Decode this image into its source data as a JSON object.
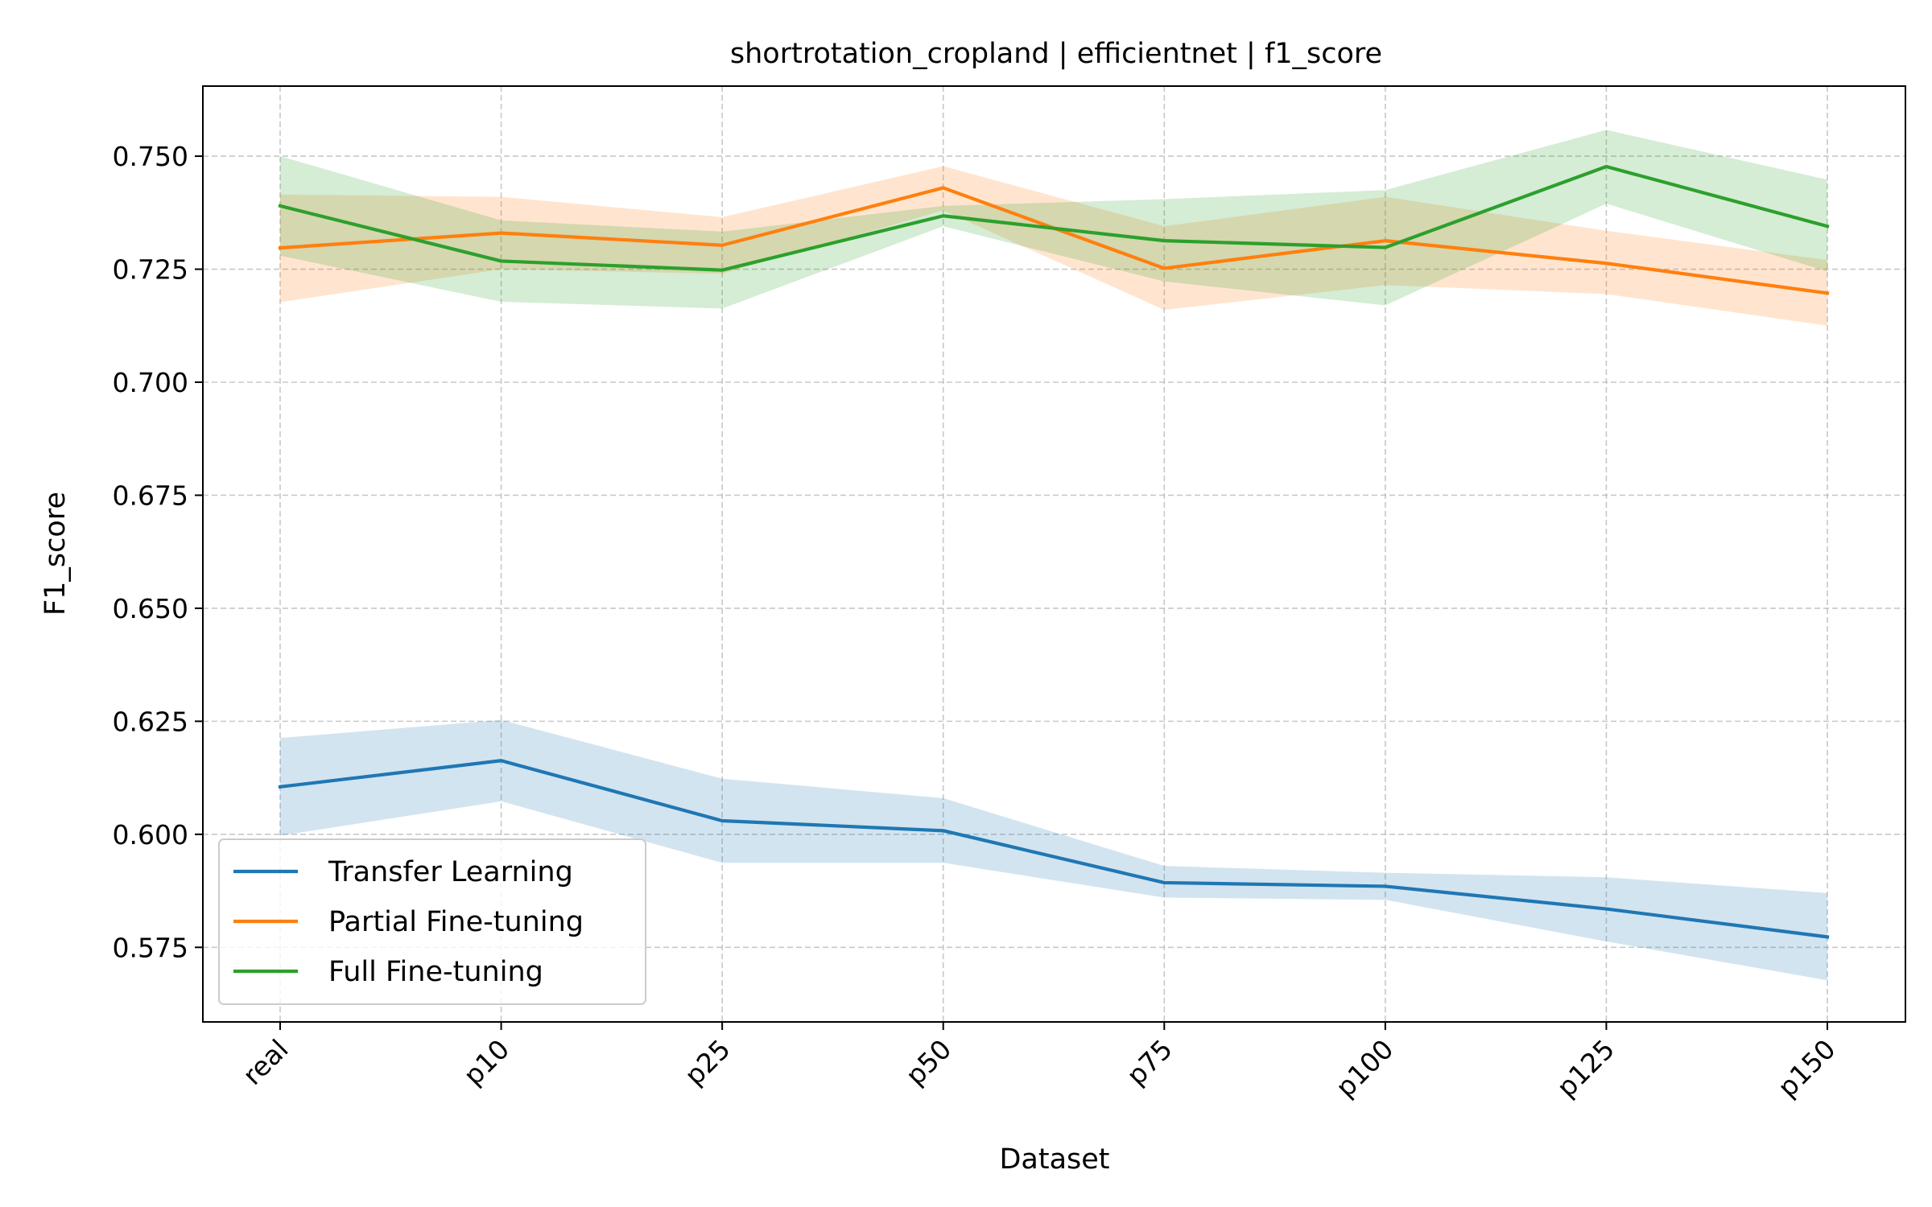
{
  "chart_data": {
    "type": "line",
    "title": "shortrotation_cropland | efficientnet | f1_score",
    "xlabel": "Dataset",
    "ylabel": "F1_score",
    "categories": [
      "real",
      "p10",
      "p25",
      "p50",
      "p75",
      "p100",
      "p125",
      "p150"
    ],
    "ylim": [
      0.5585,
      0.7655
    ],
    "yticks": [
      0.575,
      0.6,
      0.625,
      0.65,
      0.675,
      0.7,
      0.725,
      0.75
    ],
    "ytick_labels": [
      "0.575",
      "0.600",
      "0.625",
      "0.650",
      "0.675",
      "0.700",
      "0.725",
      "0.750"
    ],
    "grid": true,
    "legend_position": "lower-left",
    "series": [
      {
        "name": "Transfer Learning",
        "color": "#1f77b4",
        "values": [
          0.6105,
          0.6163,
          0.603,
          0.6008,
          0.5893,
          0.5885,
          0.5835,
          0.5773
        ],
        "band_lower": [
          0.5997,
          0.6073,
          0.5937,
          0.5937,
          0.586,
          0.5855,
          0.5763,
          0.5677
        ],
        "band_upper": [
          0.6213,
          0.6253,
          0.6123,
          0.608,
          0.593,
          0.5915,
          0.5905,
          0.587
        ]
      },
      {
        "name": "Partial Fine-tuning",
        "color": "#ff7f0e",
        "values": [
          0.7297,
          0.733,
          0.7303,
          0.743,
          0.7252,
          0.7313,
          0.7263,
          0.7197
        ],
        "band_lower": [
          0.7177,
          0.725,
          0.724,
          0.738,
          0.716,
          0.7215,
          0.7195,
          0.7125
        ],
        "band_upper": [
          0.7415,
          0.741,
          0.7365,
          0.7478,
          0.7345,
          0.741,
          0.7335,
          0.727
        ]
      },
      {
        "name": "Full Fine-tuning",
        "color": "#2ca02c",
        "values": [
          0.739,
          0.7268,
          0.7248,
          0.7368,
          0.7313,
          0.7298,
          0.7477,
          0.7345
        ],
        "band_lower": [
          0.728,
          0.7178,
          0.7163,
          0.7345,
          0.7223,
          0.717,
          0.7395,
          0.7245
        ],
        "band_upper": [
          0.75,
          0.7358,
          0.7333,
          0.739,
          0.7405,
          0.7425,
          0.7558,
          0.7448
        ]
      }
    ]
  }
}
